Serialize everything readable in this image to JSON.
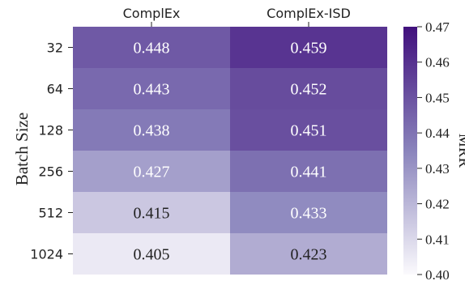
{
  "chart_data": {
    "type": "heatmap",
    "title": "",
    "xlabel": "",
    "ylabel": "Batch Size",
    "columns": [
      "ComplEx",
      "ComplEx-ISD"
    ],
    "rows": [
      "32",
      "64",
      "128",
      "256",
      "512",
      "1024"
    ],
    "values": [
      [
        0.448,
        0.459
      ],
      [
        0.443,
        0.452
      ],
      [
        0.438,
        0.451
      ],
      [
        0.427,
        0.441
      ],
      [
        0.415,
        0.433
      ],
      [
        0.405,
        0.423
      ]
    ],
    "value_labels": [
      [
        "0.448",
        "0.459"
      ],
      [
        "0.443",
        "0.452"
      ],
      [
        "0.438",
        "0.451"
      ],
      [
        "0.427",
        "0.441"
      ],
      [
        "0.415",
        "0.433"
      ],
      [
        "0.405",
        "0.423"
      ]
    ],
    "colorbar": {
      "label": "MRR",
      "vmin": 0.4,
      "vmax": 0.47,
      "ticks": [
        0.4,
        0.41,
        0.42,
        0.43,
        0.44,
        0.45,
        0.46,
        0.47
      ],
      "tick_labels": [
        "0.40",
        "0.41",
        "0.42",
        "0.43",
        "0.44",
        "0.45",
        "0.46",
        "0.47"
      ]
    },
    "colormap": {
      "low": "#fbfafd",
      "mid": "#8a84bc",
      "high": "#41107d"
    },
    "grid": false
  }
}
